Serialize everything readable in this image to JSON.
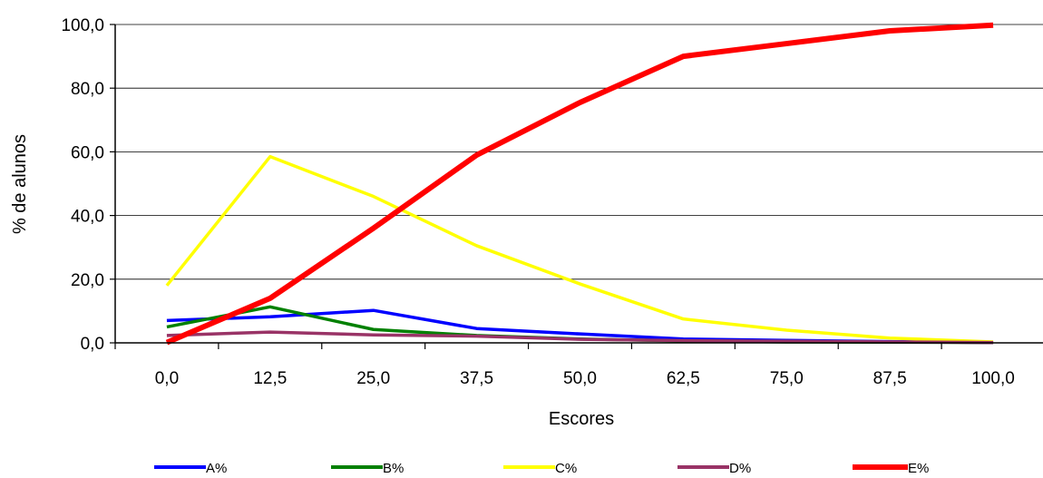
{
  "chart_data": {
    "type": "line",
    "x": [
      0,
      12.5,
      25,
      37.5,
      50,
      62.5,
      75,
      87.5,
      100
    ],
    "x_tick_labels": [
      "0,0",
      "12,5",
      "25,0",
      "37,5",
      "50,0",
      "62,5",
      "75,0",
      "87,5",
      "100,0"
    ],
    "y_tick_values": [
      0,
      20,
      40,
      60,
      80,
      100
    ],
    "y_tick_labels": [
      "0,0",
      "20,0",
      "40,0",
      "60,0",
      "80,0",
      "100,0"
    ],
    "ylim": [
      0,
      100
    ],
    "xlabel": "Escores",
    "ylabel": "% de alunos",
    "grid": "horizontal",
    "legend_position": "bottom",
    "series": [
      {
        "name": "A%",
        "color": "#0000ff",
        "values": [
          7,
          8.2,
          10.2,
          4.5,
          2.8,
          1.2,
          0.8,
          0.4,
          0.1
        ]
      },
      {
        "name": "B%",
        "color": "#008000",
        "values": [
          5,
          11.3,
          4.2,
          2.3,
          1.2,
          0.6,
          0.3,
          0.2,
          0.1
        ]
      },
      {
        "name": "C%",
        "color": "#ffff00",
        "values": [
          18,
          58.5,
          46,
          30.5,
          18.5,
          7.5,
          4,
          1.5,
          0.3
        ]
      },
      {
        "name": "D%",
        "color": "#993366",
        "values": [
          2.3,
          3.4,
          2.5,
          2.1,
          1.1,
          0.7,
          0.5,
          0.3,
          0.1
        ]
      },
      {
        "name": "E%",
        "color": "#ff0000",
        "values": [
          0.1,
          14,
          36,
          59,
          75.5,
          90,
          94,
          98,
          99.8
        ]
      }
    ]
  }
}
